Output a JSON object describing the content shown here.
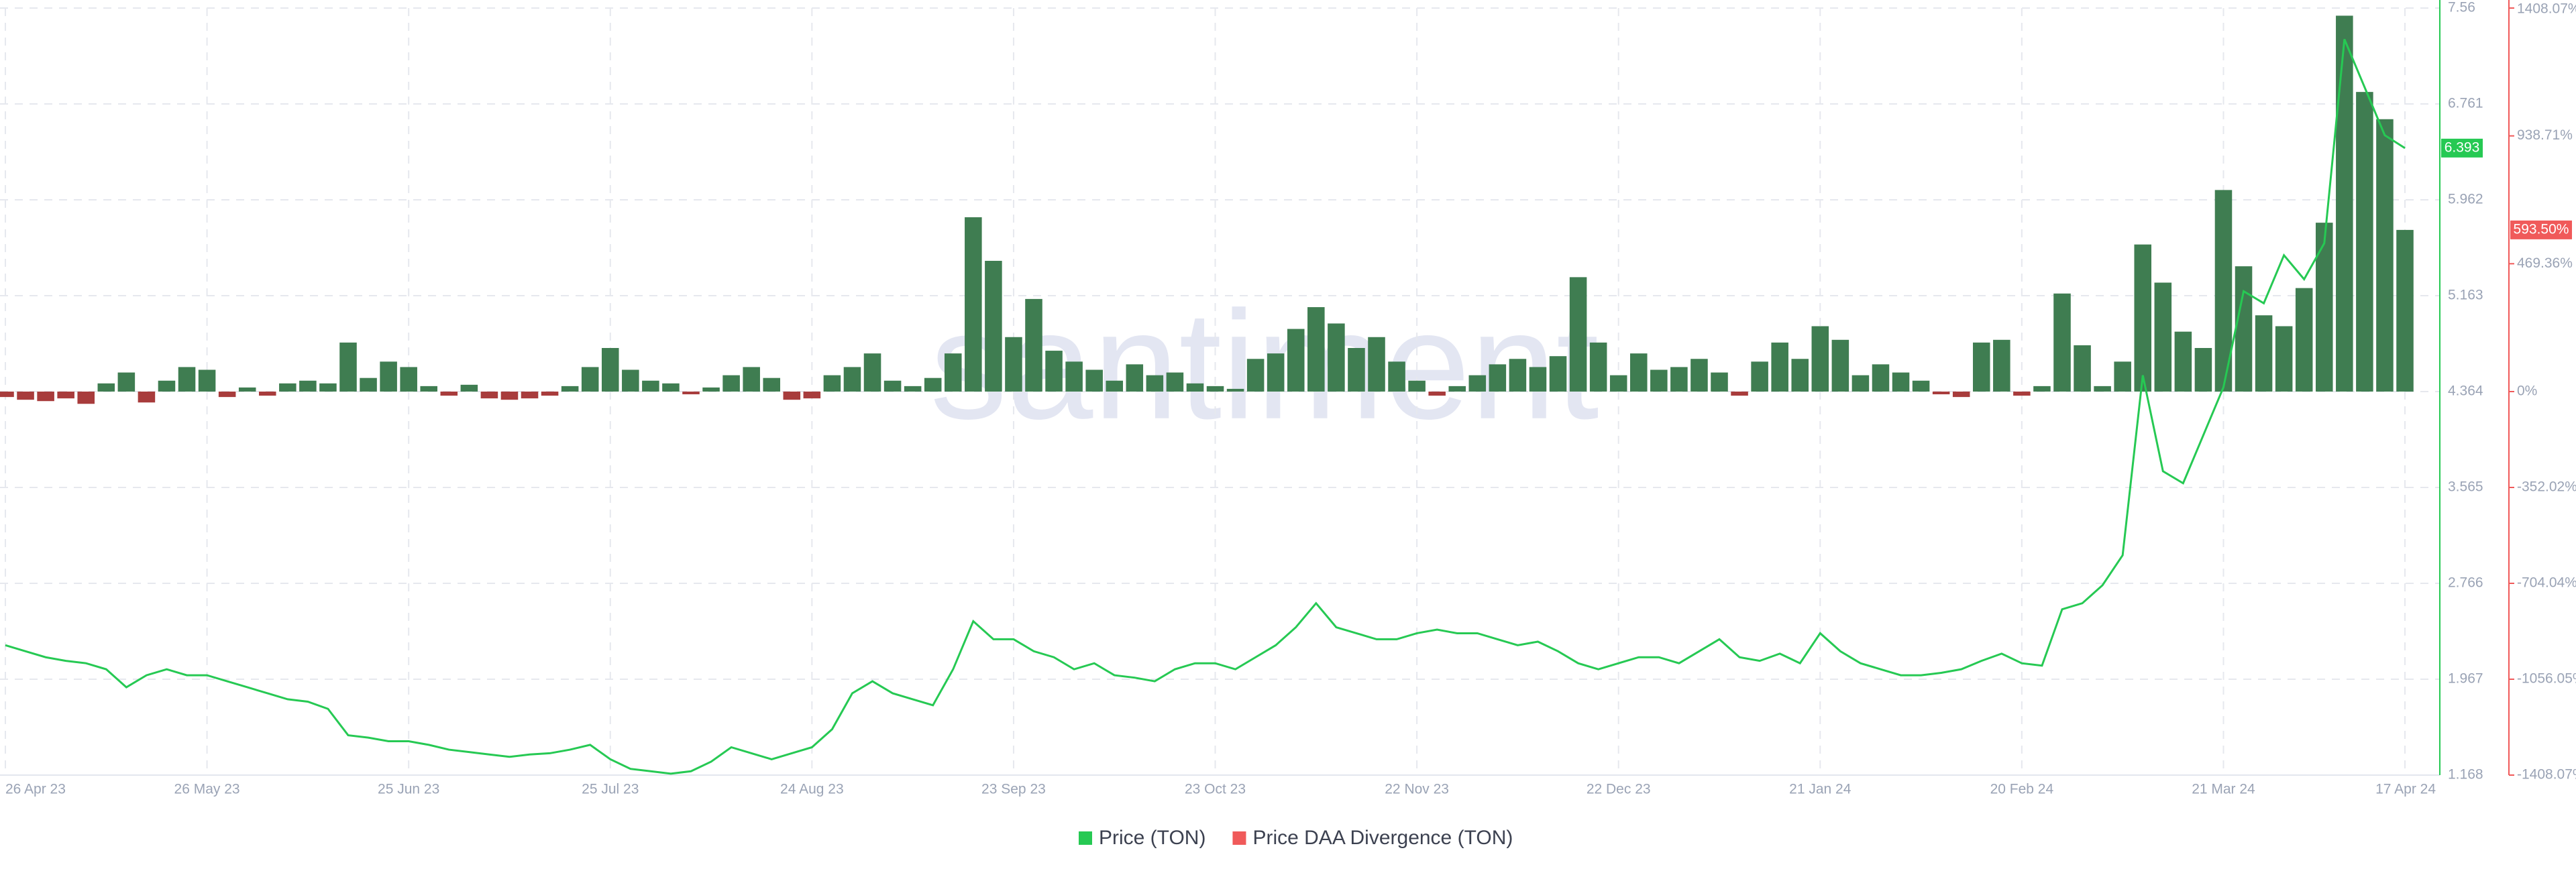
{
  "chart_data": {
    "type": "line",
    "watermark": "santiment",
    "x": [
      "26 Apr 23",
      "29 Apr 23",
      "2 May 23",
      "5 May 23",
      "8 May 23",
      "11 May 23",
      "14 May 23",
      "17 May 23",
      "20 May 23",
      "23 May 23",
      "26 May 23",
      "29 May 23",
      "1 Jun 23",
      "4 Jun 23",
      "7 Jun 23",
      "10 Jun 23",
      "13 Jun 23",
      "16 Jun 23",
      "19 Jun 23",
      "22 Jun 23",
      "25 Jun 23",
      "28 Jun 23",
      "1 Jul 23",
      "4 Jul 23",
      "7 Jul 23",
      "10 Jul 23",
      "13 Jul 23",
      "16 Jul 23",
      "19 Jul 23",
      "22 Jul 23",
      "25 Jul 23",
      "28 Jul 23",
      "31 Jul 23",
      "3 Aug 23",
      "6 Aug 23",
      "9 Aug 23",
      "12 Aug 23",
      "15 Aug 23",
      "18 Aug 23",
      "21 Aug 23",
      "24 Aug 23",
      "27 Aug 23",
      "30 Aug 23",
      "2 Sep 23",
      "5 Sep 23",
      "8 Sep 23",
      "11 Sep 23",
      "14 Sep 23",
      "17 Sep 23",
      "20 Sep 23",
      "23 Sep 23",
      "26 Sep 23",
      "29 Sep 23",
      "2 Oct 23",
      "5 Oct 23",
      "8 Oct 23",
      "11 Oct 23",
      "14 Oct 23",
      "17 Oct 23",
      "20 Oct 23",
      "23 Oct 23",
      "26 Oct 23",
      "29 Oct 23",
      "1 Nov 23",
      "4 Nov 23",
      "7 Nov 23",
      "10 Nov 23",
      "13 Nov 23",
      "16 Nov 23",
      "19 Nov 23",
      "22 Nov 23",
      "25 Nov 23",
      "28 Nov 23",
      "1 Dec 23",
      "4 Dec 23",
      "7 Dec 23",
      "10 Dec 23",
      "13 Dec 23",
      "16 Dec 23",
      "19 Dec 23",
      "22 Dec 23",
      "25 Dec 23",
      "28 Dec 23",
      "31 Dec 23",
      "3 Jan 24",
      "6 Jan 24",
      "9 Jan 24",
      "12 Jan 24",
      "15 Jan 24",
      "18 Jan 24",
      "21 Jan 24",
      "24 Jan 24",
      "27 Jan 24",
      "30 Jan 24",
      "2 Feb 24",
      "5 Feb 24",
      "8 Feb 24",
      "11 Feb 24",
      "14 Feb 24",
      "17 Feb 24",
      "20 Feb 24",
      "23 Feb 24",
      "26 Feb 24",
      "29 Feb 24",
      "3 Mar 24",
      "6 Mar 24",
      "9 Mar 24",
      "12 Mar 24",
      "15 Mar 24",
      "18 Mar 24",
      "21 Mar 24",
      "24 Mar 24",
      "27 Mar 24",
      "30 Mar 24",
      "2 Apr 24",
      "5 Apr 24",
      "8 Apr 24",
      "11 Apr 24",
      "14 Apr 24",
      "17 Apr 24"
    ],
    "xticks": [
      "26 Apr 23",
      "26 May 23",
      "25 Jun 23",
      "25 Jul 23",
      "24 Aug 23",
      "23 Sep 23",
      "23 Oct 23",
      "22 Nov 23",
      "22 Dec 23",
      "21 Jan 24",
      "20 Feb 24",
      "21 Mar 24",
      "17 Apr 24"
    ],
    "ylim": [
      1.168,
      7.56
    ],
    "yticks": [
      1.168,
      1.967,
      2.766,
      3.565,
      4.364,
      5.163,
      5.962,
      6.761,
      7.56
    ],
    "y2lim": [
      -1408.07,
      1408.07
    ],
    "y2ticks": [
      {
        "value": -1408.07,
        "label": "-1408.07%"
      },
      {
        "value": -1056.05,
        "label": "-1056.05%"
      },
      {
        "value": -704.04,
        "label": "-704.04%"
      },
      {
        "value": -352.02,
        "label": "-352.02%"
      },
      {
        "value": 0,
        "label": "0%"
      },
      {
        "value": 469.36,
        "label": "469.36%"
      },
      {
        "value": 938.71,
        "label": "938.71%"
      },
      {
        "value": 1408.07,
        "label": "1408.07%"
      }
    ],
    "grid": true,
    "price_badge": 6.393,
    "divergence_badge": {
      "value": 593.5,
      "label": "593.50%"
    },
    "series": [
      {
        "name": "Price (TON)",
        "type": "line",
        "color": "#26c953",
        "values": [
          2.25,
          2.2,
          2.15,
          2.12,
          2.1,
          2.05,
          1.9,
          2.0,
          2.05,
          2.0,
          2.0,
          1.95,
          1.9,
          1.85,
          1.8,
          1.78,
          1.72,
          1.5,
          1.48,
          1.45,
          1.45,
          1.42,
          1.38,
          1.36,
          1.34,
          1.32,
          1.34,
          1.35,
          1.38,
          1.42,
          1.3,
          1.22,
          1.2,
          1.18,
          1.2,
          1.28,
          1.4,
          1.35,
          1.3,
          1.35,
          1.4,
          1.55,
          1.85,
          1.95,
          1.85,
          1.8,
          1.75,
          2.05,
          2.45,
          2.3,
          2.3,
          2.2,
          2.15,
          2.05,
          2.1,
          2.0,
          1.98,
          1.95,
          2.05,
          2.1,
          2.1,
          2.05,
          2.15,
          2.25,
          2.4,
          2.6,
          2.4,
          2.35,
          2.3,
          2.3,
          2.35,
          2.38,
          2.35,
          2.35,
          2.3,
          2.25,
          2.28,
          2.2,
          2.1,
          2.05,
          2.1,
          2.15,
          2.15,
          2.1,
          2.2,
          2.3,
          2.15,
          2.12,
          2.18,
          2.1,
          2.35,
          2.2,
          2.1,
          2.05,
          2.0,
          2.0,
          2.02,
          2.05,
          2.12,
          2.18,
          2.1,
          2.08,
          2.55,
          2.6,
          2.75,
          3.0,
          4.5,
          3.7,
          3.6,
          4.0,
          4.4,
          5.2,
          5.1,
          5.5,
          5.3,
          5.6,
          7.3,
          6.9,
          6.5,
          6.393
        ]
      },
      {
        "name": "Price DAA Divergence (TON)",
        "type": "bar",
        "axis": "y2",
        "color": "#f05a5a",
        "positive_color": "#3f7d51",
        "negative_color": "#a83c3c",
        "values": [
          -20,
          -30,
          -35,
          -25,
          -45,
          30,
          70,
          -40,
          40,
          90,
          80,
          -20,
          15,
          -15,
          30,
          40,
          30,
          180,
          50,
          110,
          90,
          20,
          -15,
          25,
          -25,
          -30,
          -25,
          -15,
          20,
          90,
          160,
          80,
          40,
          30,
          -10,
          15,
          60,
          90,
          50,
          -30,
          -25,
          60,
          90,
          140,
          40,
          20,
          50,
          140,
          640,
          480,
          200,
          340,
          150,
          110,
          80,
          40,
          100,
          60,
          70,
          30,
          20,
          10,
          120,
          140,
          230,
          310,
          250,
          160,
          200,
          110,
          40,
          -15,
          20,
          60,
          100,
          120,
          90,
          130,
          420,
          180,
          60,
          140,
          80,
          90,
          120,
          70,
          -15,
          110,
          180,
          120,
          240,
          190,
          60,
          100,
          70,
          40,
          -10,
          -20,
          180,
          190,
          -15,
          20,
          360,
          170,
          20,
          110,
          540,
          400,
          220,
          160,
          740,
          460,
          280,
          240,
          380,
          620,
          1380,
          1100,
          1000,
          593.5
        ]
      }
    ]
  }
}
